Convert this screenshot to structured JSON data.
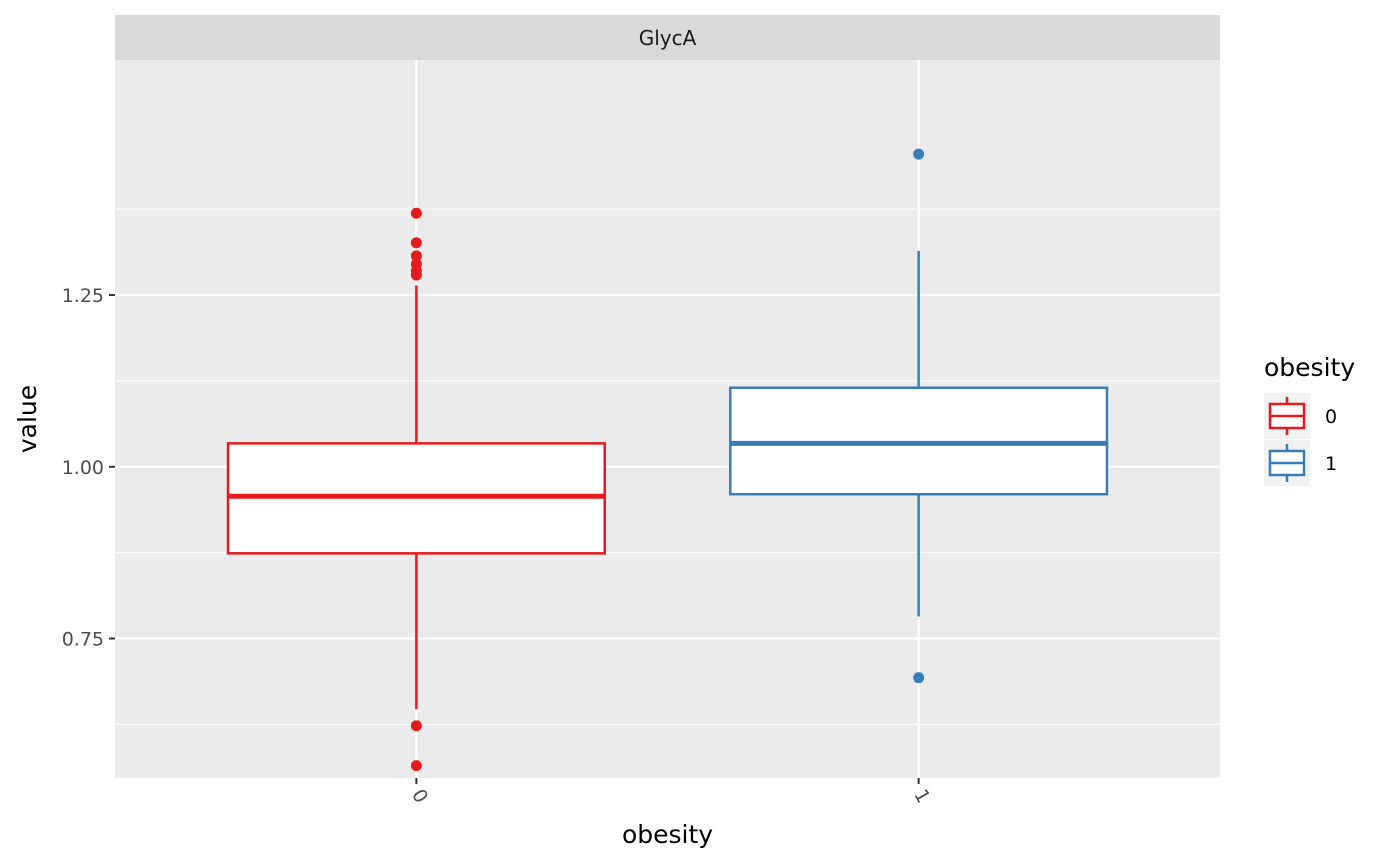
{
  "chart_data": {
    "type": "box",
    "facet_label": "GlycA",
    "xlabel": "obesity",
    "ylabel": "value",
    "categories": [
      "0",
      "1"
    ],
    "ylim": [
      0.547,
      1.592
    ],
    "yticks": [
      0.75,
      1.0,
      1.25
    ],
    "ytick_labels": [
      "0.75",
      "1.00",
      "1.25"
    ],
    "grid": true,
    "legend": {
      "title": "obesity",
      "position": "right",
      "items": [
        {
          "label": "0",
          "color": "#E41A1C"
        },
        {
          "label": "1",
          "color": "#377EB8"
        }
      ]
    },
    "boxes": [
      {
        "category": "0",
        "color": "#E41A1C",
        "whisker_low": 0.647,
        "q1": 0.874,
        "median": 0.957,
        "q3": 1.034,
        "whisker_high": 1.264,
        "outliers": [
          0.565,
          0.623,
          1.279,
          1.285,
          1.295,
          1.307,
          1.326,
          1.369
        ]
      },
      {
        "category": "1",
        "color": "#377EB8",
        "whisker_low": 0.782,
        "q1": 0.96,
        "median": 1.034,
        "q3": 1.115,
        "whisker_high": 1.314,
        "outliers": [
          0.693,
          1.455
        ]
      }
    ]
  }
}
